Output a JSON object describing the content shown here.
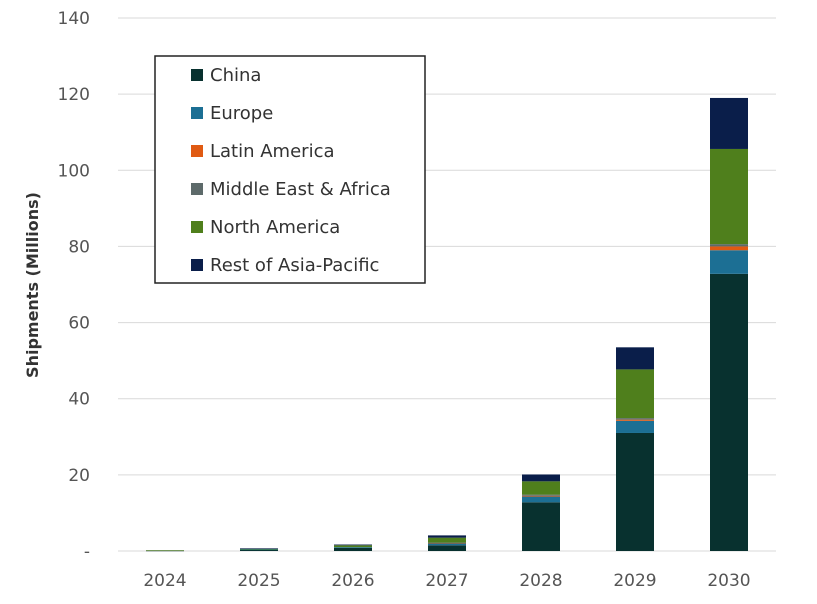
{
  "chart_data": {
    "type": "bar",
    "stacked": true,
    "ylabel": "Shipments (Millions)",
    "xlabel": "",
    "ylim": [
      0,
      140
    ],
    "yticks": [
      0,
      20,
      40,
      60,
      80,
      100,
      120,
      140
    ],
    "ytick_labels": [
      "-",
      "20",
      "40",
      "60",
      "80",
      "100",
      "120",
      "140"
    ],
    "grid": true,
    "legend_position": "top-left",
    "categories": [
      "2024",
      "2025",
      "2026",
      "2027",
      "2028",
      "2029",
      "2030"
    ],
    "series": [
      {
        "name": "China",
        "color": "#08312f",
        "values": [
          0.1,
          0.3,
          0.8,
          1.5,
          12.8,
          31.0,
          72.8
        ]
      },
      {
        "name": "Europe",
        "color": "#1c6f94",
        "values": [
          0.0,
          0.1,
          0.2,
          0.5,
          1.5,
          3.2,
          6.2
        ]
      },
      {
        "name": "Latin America",
        "color": "#e05a12",
        "values": [
          0.0,
          0.0,
          0.0,
          0.1,
          0.2,
          0.3,
          1.0
        ]
      },
      {
        "name": "Middle East & Africa",
        "color": "#5d6a6a",
        "values": [
          0.0,
          0.0,
          0.0,
          0.1,
          0.3,
          0.4,
          0.6
        ]
      },
      {
        "name": "North America",
        "color": "#4f7f1c",
        "values": [
          0.1,
          0.2,
          0.5,
          1.3,
          3.5,
          12.8,
          25.0
        ]
      },
      {
        "name": "Rest of Asia-Pacific",
        "color": "#0a1e4a",
        "values": [
          0.0,
          0.1,
          0.2,
          0.6,
          1.8,
          5.8,
          13.4
        ]
      }
    ]
  }
}
